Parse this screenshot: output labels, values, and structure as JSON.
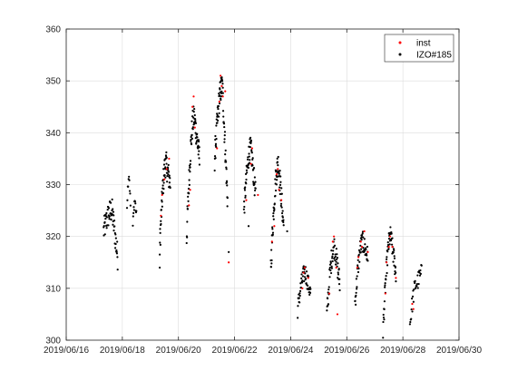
{
  "chart_data": {
    "type": "scatter",
    "title": "",
    "xlabel": "",
    "ylabel": "",
    "x_is_date": true,
    "xlim": [
      "2019-06-16",
      "2019-06-30"
    ],
    "ylim": [
      300,
      360
    ],
    "x_ticks": [
      "2019-06-16",
      "2019-06-18",
      "2019-06-20",
      "2019-06-22",
      "2019-06-24",
      "2019-06-26",
      "2019-06-28",
      "2019-06-30"
    ],
    "x_tick_labels": [
      "2019/06/16",
      "2019/06/18",
      "2019/06/20",
      "2019/06/22",
      "2019/06/24",
      "2019/06/26",
      "2019/06/28",
      "2019/06/30"
    ],
    "y_ticks": [
      300,
      310,
      320,
      330,
      340,
      350,
      360
    ],
    "y_tick_labels": [
      "300",
      "310",
      "320",
      "330",
      "340",
      "350",
      "360"
    ],
    "grid": true,
    "legend_position": "top-right",
    "series": [
      {
        "name": "inst",
        "color": "#ff0000",
        "marker": "dot",
        "points": [
          [
            "2019-06-19 09:00",
            324
          ],
          [
            "2019-06-19 10:00",
            328
          ],
          [
            "2019-06-19 12:00",
            331
          ],
          [
            "2019-06-19 14:00",
            333
          ],
          [
            "2019-06-19 16:00",
            335
          ],
          [
            "2019-06-20 09:00",
            326
          ],
          [
            "2019-06-20 10:00",
            329
          ],
          [
            "2019-06-20 12:00",
            345
          ],
          [
            "2019-06-20 13:00",
            347
          ],
          [
            "2019-06-20 14:00",
            341
          ],
          [
            "2019-06-21 09:00",
            337
          ],
          [
            "2019-06-21 11:00",
            346
          ],
          [
            "2019-06-21 12:00",
            351
          ],
          [
            "2019-06-21 13:00",
            349
          ],
          [
            "2019-06-21 14:00",
            347
          ],
          [
            "2019-06-21 16:00",
            348
          ],
          [
            "2019-06-21 19:00",
            315
          ],
          [
            "2019-06-22 10:00",
            327
          ],
          [
            "2019-06-22 14:00",
            334
          ],
          [
            "2019-06-22 15:00",
            337
          ],
          [
            "2019-06-22 20:00",
            328
          ],
          [
            "2019-06-23 08:00",
            319
          ],
          [
            "2019-06-23 10:00",
            322
          ],
          [
            "2019-06-23 12:00",
            332
          ],
          [
            "2019-06-23 13:00",
            333
          ],
          [
            "2019-06-23 14:00",
            329
          ],
          [
            "2019-06-23 16:00",
            327
          ],
          [
            "2019-06-24 10:00",
            310
          ],
          [
            "2019-06-24 11:00",
            313
          ],
          [
            "2019-06-24 12:00",
            314
          ],
          [
            "2019-06-24 15:00",
            312
          ],
          [
            "2019-06-25 09:00",
            309
          ],
          [
            "2019-06-25 12:00",
            319
          ],
          [
            "2019-06-25 13:00",
            320
          ],
          [
            "2019-06-25 15:00",
            314
          ],
          [
            "2019-06-25 16:00",
            305
          ],
          [
            "2019-06-26 09:00",
            314
          ],
          [
            "2019-06-26 10:00",
            316
          ],
          [
            "2019-06-26 12:00",
            319
          ],
          [
            "2019-06-26 13:00",
            318
          ],
          [
            "2019-06-26 15:00",
            321
          ],
          [
            "2019-06-26 18:00",
            317
          ],
          [
            "2019-06-27 09:00",
            309
          ],
          [
            "2019-06-27 10:00",
            315
          ],
          [
            "2019-06-27 12:00",
            318
          ],
          [
            "2019-06-27 13:00",
            320
          ],
          [
            "2019-06-27 15:00",
            318
          ],
          [
            "2019-06-27 18:00",
            312
          ],
          [
            "2019-06-28 08:00",
            307
          ],
          [
            "2019-06-28 09:00",
            306
          ]
        ]
      },
      {
        "name": "IZO#185",
        "color": "#000000",
        "marker": "dot",
        "segments": [
          {
            "start": "2019-06-17 08:00",
            "end": "2019-06-17 20:00",
            "y_start": 321,
            "y_peak": 325,
            "y_end": 316,
            "spread": 2.5,
            "n": 60
          },
          {
            "start": "2019-06-18 04:00",
            "end": "2019-06-18 07:00",
            "y_start": 326,
            "y_peak": 332,
            "y_end": 326,
            "spread": 1.0,
            "n": 10
          },
          {
            "start": "2019-06-18 09:00",
            "end": "2019-06-18 12:00",
            "y_start": 322,
            "y_peak": 327,
            "y_end": 324,
            "spread": 1.0,
            "n": 12
          },
          {
            "start": "2019-06-19 08:00",
            "end": "2019-06-19 17:00",
            "y_start": 318,
            "y_peak": 334,
            "y_end": 330,
            "spread": 2.5,
            "n": 60
          },
          {
            "start": "2019-06-20 07:00",
            "end": "2019-06-20 18:00",
            "y_start": 320,
            "y_peak": 343,
            "y_end": 335,
            "spread": 2.5,
            "n": 70
          },
          {
            "start": "2019-06-21 07:00",
            "end": "2019-06-21 18:00",
            "y_start": 335,
            "y_peak": 349,
            "y_end": 327,
            "spread": 2.5,
            "n": 75
          },
          {
            "start": "2019-06-22 08:00",
            "end": "2019-06-22 18:00",
            "y_start": 325,
            "y_peak": 337,
            "y_end": 328,
            "spread": 2.2,
            "n": 60
          },
          {
            "start": "2019-06-23 07:00",
            "end": "2019-06-23 18:00",
            "y_start": 314,
            "y_peak": 334,
            "y_end": 322,
            "spread": 2.5,
            "n": 70
          },
          {
            "start": "2019-06-24 06:00",
            "end": "2019-06-24 17:00",
            "y_start": 306,
            "y_peak": 313,
            "y_end": 309,
            "spread": 1.8,
            "n": 50
          },
          {
            "start": "2019-06-25 07:00",
            "end": "2019-06-25 18:00",
            "y_start": 305,
            "y_peak": 318,
            "y_end": 311,
            "spread": 2.2,
            "n": 55
          },
          {
            "start": "2019-06-26 07:00",
            "end": "2019-06-26 18:00",
            "y_start": 307,
            "y_peak": 319,
            "y_end": 316,
            "spread": 2.0,
            "n": 55
          },
          {
            "start": "2019-06-27 07:00",
            "end": "2019-06-27 18:00",
            "y_start": 302,
            "y_peak": 320,
            "y_end": 313,
            "spread": 2.0,
            "n": 60
          },
          {
            "start": "2019-06-28 06:00",
            "end": "2019-06-28 16:00",
            "y_start": 303,
            "y_peak": 311,
            "y_end": 313,
            "spread": 1.8,
            "n": 30
          }
        ],
        "extra_points": [
          [
            "2019-06-19 08:00",
            314
          ],
          [
            "2019-06-21 19:00",
            317
          ],
          [
            "2019-06-22 12:00",
            322
          ],
          [
            "2019-06-23 21:00",
            321
          ]
        ]
      }
    ]
  }
}
